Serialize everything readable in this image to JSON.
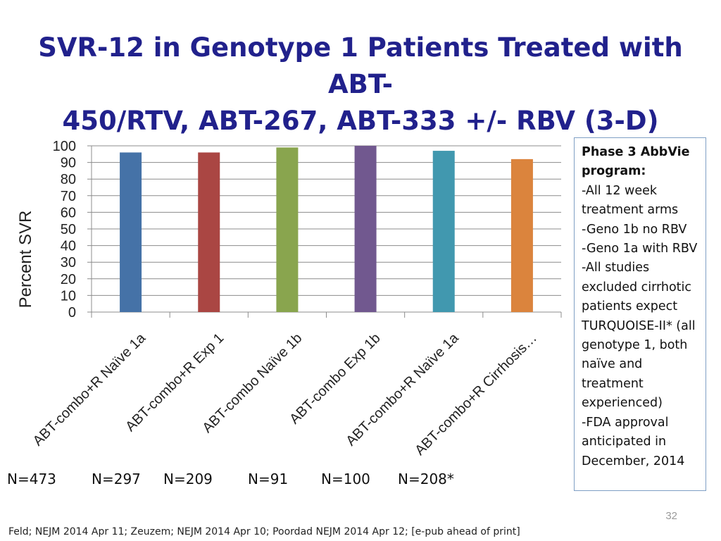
{
  "slide": {
    "title_line1": "SVR-12 in Genotype 1 Patients Treated with ABT-",
    "title_line2": "450/RTV, ABT-267, ABT-333 +/- RBV (3-D)",
    "page_number": "32",
    "footer": "Feld; NEJM 2014 Apr 11;  Zeuzem; NEJM 2014 Apr 10; Poordad NEJM 2014 Apr 12; [e-pub ahead of print]"
  },
  "note_box": {
    "heading": "Phase 3 AbbVie program:",
    "lines": [
      "-All 12 week treatment arms",
      "-Geno 1b no RBV",
      "-Geno 1a with RBV",
      "-All studies excluded cirrhotic patients expect TURQUOISE-II* (all genotype 1, both naïve and treatment experienced)",
      "-FDA approval anticipated in December, 2014"
    ]
  },
  "sample_sizes": [
    "N=473",
    "N=297",
    "N=209",
    "N=91",
    "N=100",
    "N=208*"
  ],
  "chart_data": {
    "type": "bar",
    "ylabel": "Percent SVR",
    "xlabel": "",
    "ylim": [
      0,
      100
    ],
    "yticks": [
      0,
      10,
      20,
      30,
      40,
      50,
      60,
      70,
      80,
      90,
      100
    ],
    "grid": true,
    "categories": [
      "ABT-combo+R Naïve 1a",
      "ABT-combo+R Exp 1",
      "ABT-combo Naïve 1b",
      "ABT-combo Exp 1b",
      "ABT-combo+R Naïve 1a",
      "ABT-combo+R Cirrhosis…"
    ],
    "values": [
      96,
      96,
      99,
      100,
      97,
      92
    ],
    "colors": [
      "#4572a7",
      "#aa4643",
      "#89a54e",
      "#71588f",
      "#4198af",
      "#db843d"
    ]
  }
}
